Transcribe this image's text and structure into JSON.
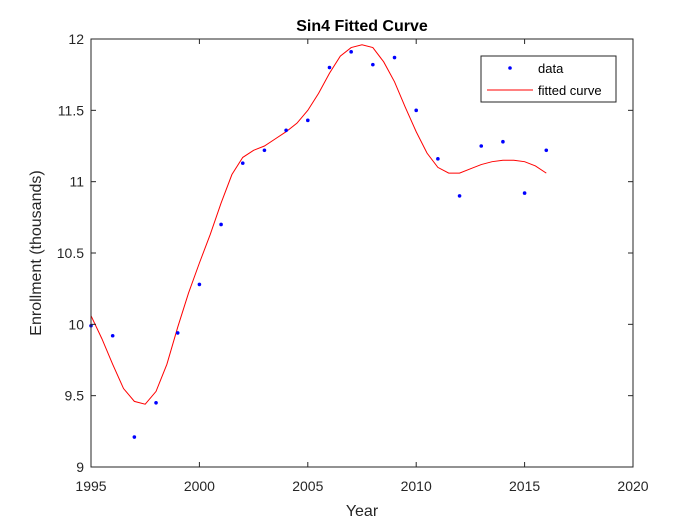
{
  "chart_data": {
    "type": "line",
    "title": "Sin4 Fitted Curve",
    "xlabel": "Year",
    "ylabel": "Enrollment (thousands)",
    "xlim": [
      1995,
      2020
    ],
    "ylim": [
      9,
      12
    ],
    "xticks": [
      1995,
      2000,
      2005,
      2010,
      2015,
      2020
    ],
    "yticks": [
      9,
      9.5,
      10,
      10.5,
      11,
      11.5,
      12
    ],
    "xtick_labels": [
      "1995",
      "2000",
      "2005",
      "2010",
      "2015",
      "2020"
    ],
    "ytick_labels": [
      "9",
      "9.5",
      "10",
      "10.5",
      "11",
      "11.5",
      "12"
    ],
    "grid": false,
    "legend_position": "top-right",
    "series": [
      {
        "name": "data",
        "kind": "scatter",
        "color": "#0000ff",
        "x": [
          1995,
          1996,
          1997,
          1998,
          1999,
          2000,
          2001,
          2002,
          2003,
          2004,
          2005,
          2006,
          2007,
          2008,
          2009,
          2010,
          2011,
          2012,
          2013,
          2014,
          2015,
          2016
        ],
        "y": [
          9.99,
          9.92,
          9.21,
          9.45,
          9.94,
          10.28,
          10.7,
          11.13,
          11.22,
          11.36,
          11.43,
          11.8,
          11.91,
          11.82,
          11.87,
          11.5,
          11.16,
          10.9,
          11.25,
          11.28,
          10.92,
          11.22
        ]
      },
      {
        "name": "fitted curve",
        "kind": "line",
        "color": "#ff0000",
        "x": [
          1995,
          1995.5,
          1996,
          1996.5,
          1997,
          1997.5,
          1998,
          1998.5,
          1999,
          1999.5,
          2000,
          2000.5,
          2001,
          2001.5,
          2002,
          2002.5,
          2003,
          2003.5,
          2004,
          2004.5,
          2005,
          2005.5,
          2006,
          2006.5,
          2007,
          2007.5,
          2008,
          2008.5,
          2009,
          2009.5,
          2010,
          2010.5,
          2011,
          2011.5,
          2012,
          2012.5,
          2013,
          2013.5,
          2014,
          2014.5,
          2015,
          2015.5,
          2016
        ],
        "y": [
          10.06,
          9.9,
          9.72,
          9.55,
          9.46,
          9.44,
          9.53,
          9.72,
          9.98,
          10.22,
          10.43,
          10.63,
          10.85,
          11.05,
          11.17,
          11.22,
          11.25,
          11.3,
          11.35,
          11.41,
          11.5,
          11.62,
          11.76,
          11.88,
          11.94,
          11.96,
          11.94,
          11.84,
          11.7,
          11.52,
          11.35,
          11.2,
          11.1,
          11.06,
          11.06,
          11.09,
          11.12,
          11.14,
          11.15,
          11.15,
          11.14,
          11.11,
          11.06
        ]
      }
    ]
  }
}
